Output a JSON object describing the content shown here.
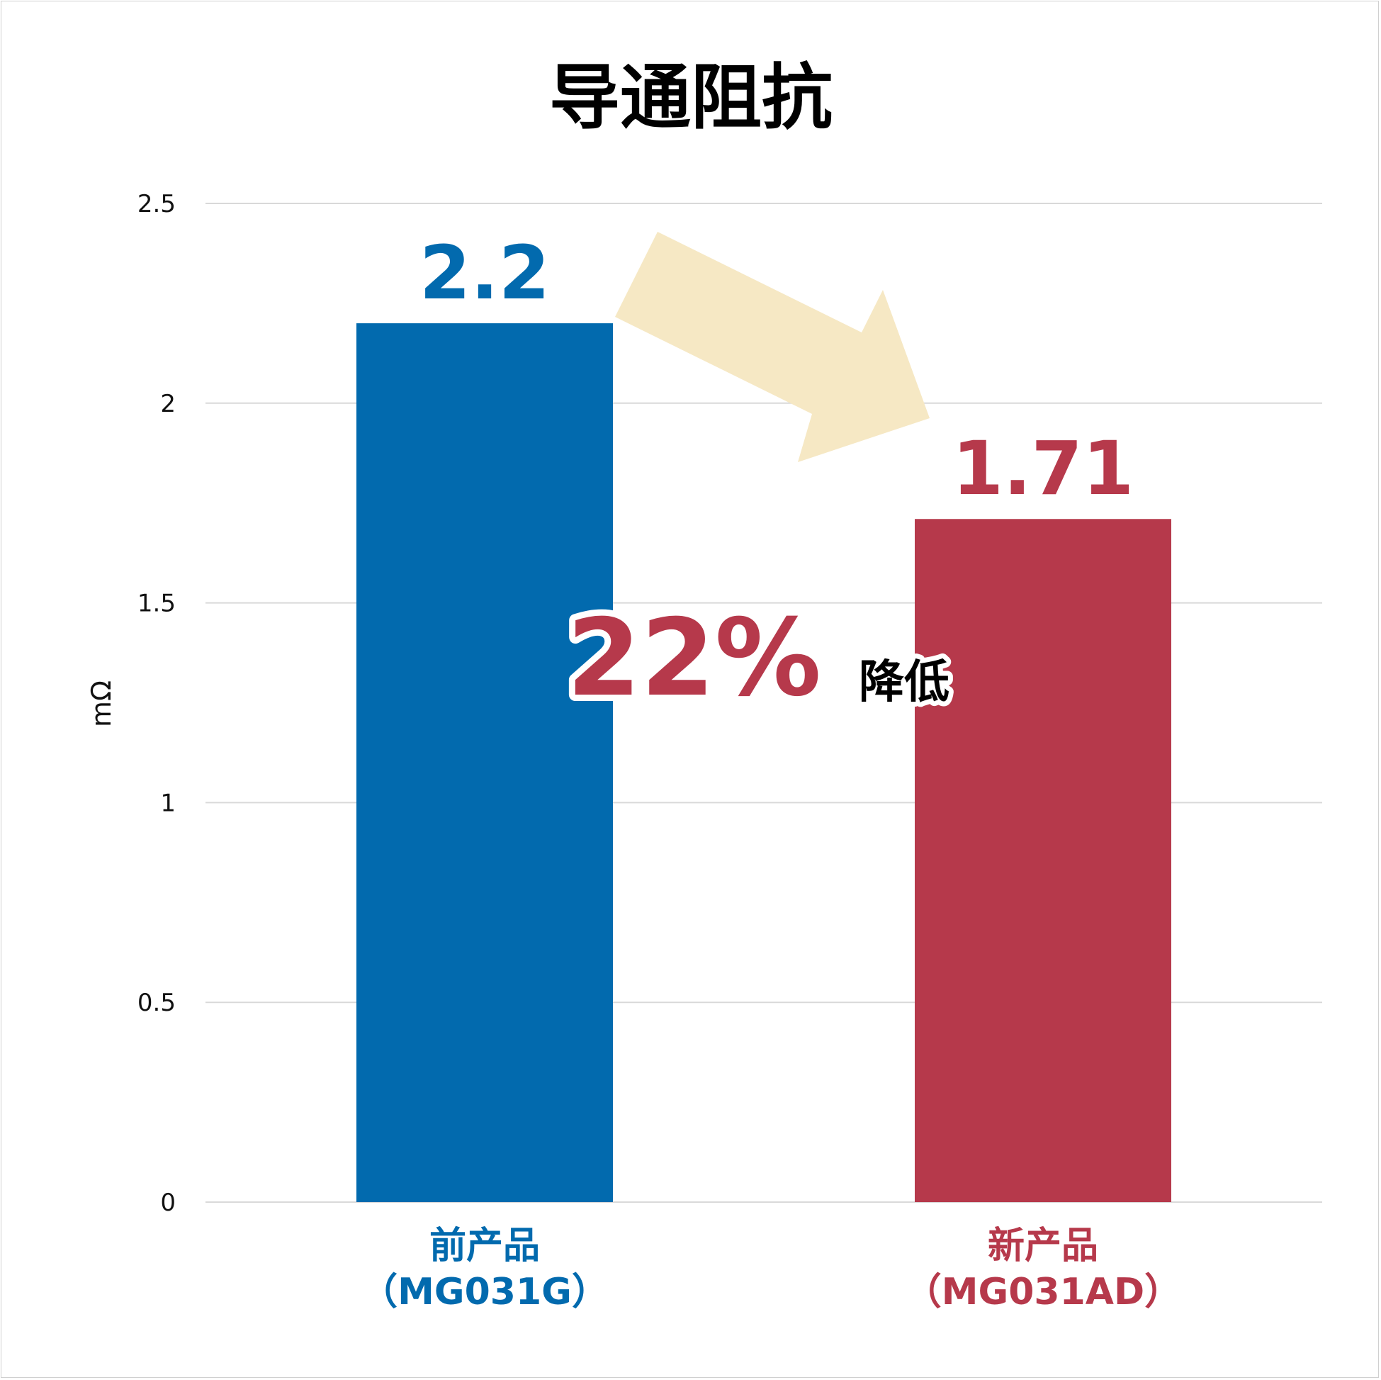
{
  "chart_data": {
    "type": "bar",
    "title": "导通阻抗",
    "ylabel": "mΩ",
    "xlabel": "",
    "ylim": [
      0,
      2.5
    ],
    "yticks": [
      "0",
      "0.5",
      "1",
      "1.5",
      "2",
      "2.5"
    ],
    "grid": true,
    "categories": [
      {
        "line1": "前产品",
        "line2": "（MG031G）"
      },
      {
        "line1": "新产品",
        "line2": "（MG031AD）"
      }
    ],
    "values": [
      2.2,
      1.71
    ],
    "data_labels": [
      "2.2",
      "1.71"
    ],
    "colors": [
      "#026aae",
      "#b6394b"
    ],
    "annotation": {
      "percent": "22%",
      "text": "降低",
      "percent_color": "#b6394b",
      "arrow_color": "#f6e8c4"
    }
  }
}
